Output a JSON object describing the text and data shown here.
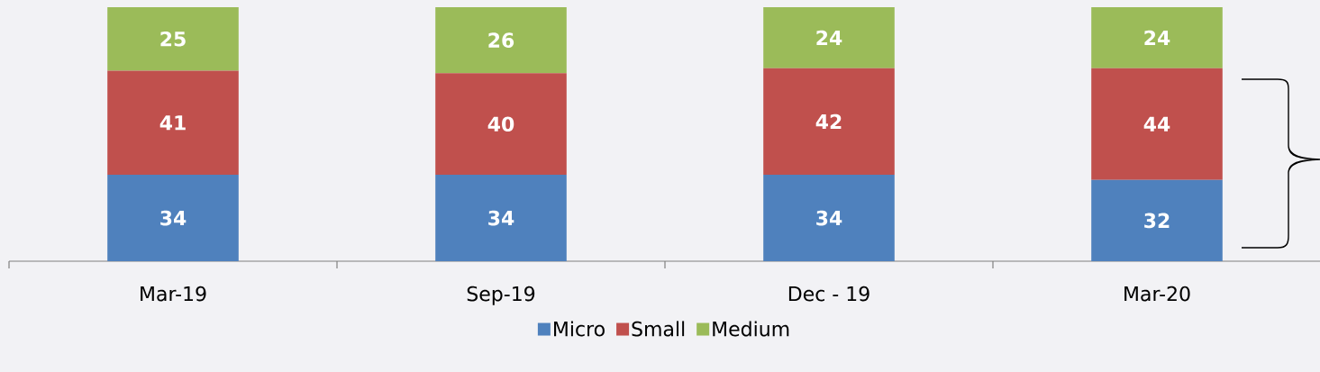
{
  "chart_data": {
    "type": "bar",
    "stacked": true,
    "data_labels": true,
    "legend": "bottom",
    "tick_labels": "x",
    "categories": [
      "Mar-19",
      "Sep-19",
      "Dec - 19",
      "Mar-20"
    ],
    "series": [
      {
        "name": "Micro",
        "color": "#4f81bd",
        "values": [
          34,
          34,
          34,
          32
        ]
      },
      {
        "name": "Small",
        "color": "#c0504d",
        "values": [
          41,
          40,
          42,
          44
        ]
      },
      {
        "name": "Medium",
        "color": "#9bbb59",
        "values": [
          25,
          26,
          24,
          24
        ]
      }
    ]
  }
}
